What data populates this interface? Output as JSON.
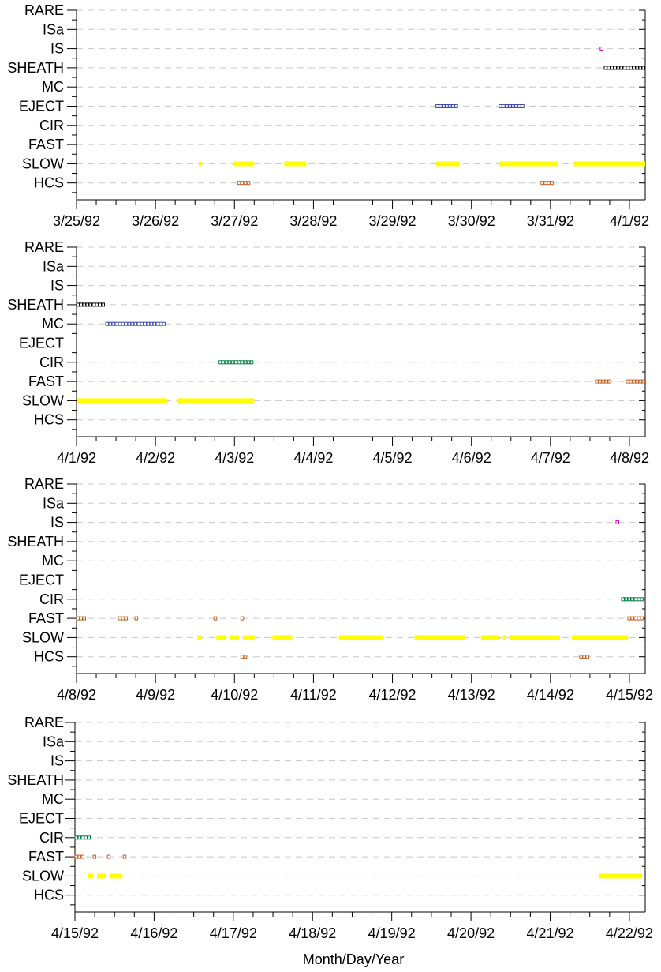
{
  "chart_data": {
    "type": "scatter",
    "categories": [
      "RARE",
      "ISa",
      "IS",
      "SHEATH",
      "MC",
      "EJECT",
      "CIR",
      "FAST",
      "SLOW",
      "HCS"
    ],
    "xlabel": "Month/Day/Year",
    "grid": "horizontal dashed",
    "colors": {
      "SLOW": "#ffff00",
      "HCS": "#c06020",
      "FAST": "#c06020",
      "CIR": "#008040",
      "EJECT": "#4050b0",
      "MC": "#4050b0",
      "SHEATH": "#000000",
      "IS": "#c000c0",
      "ISa": "#c000c0",
      "RARE": "#000000"
    },
    "panels": [
      {
        "xlim": [
          0,
          7.2
        ],
        "tick_labels": [
          "3/25/92",
          "3/26/92",
          "3/27/92",
          "3/28/92",
          "3/29/92",
          "3/30/92",
          "3/31/92",
          "4/1/92"
        ],
        "series": [
          {
            "name": "IS",
            "intervals": [
              [
                6.63,
                6.67
              ]
            ]
          },
          {
            "name": "SHEATH",
            "intervals": [
              [
                6.68,
                7.2
              ]
            ]
          },
          {
            "name": "EJECT",
            "intervals": [
              [
                4.55,
                4.85
              ],
              [
                5.35,
                5.68
              ]
            ]
          },
          {
            "name": "SLOW",
            "intervals": [
              [
                1.55,
                1.58
              ],
              [
                1.99,
                2.25
              ],
              [
                2.63,
                2.91
              ],
              [
                4.55,
                4.85
              ],
              [
                5.35,
                6.1
              ],
              [
                6.3,
                7.2
              ]
            ]
          },
          {
            "name": "HCS",
            "intervals": [
              [
                2.04,
                2.2
              ],
              [
                5.88,
                6.04
              ]
            ]
          }
        ]
      },
      {
        "xlim": [
          0,
          7.2
        ],
        "tick_labels": [
          "4/1/92",
          "4/2/92",
          "4/3/92",
          "4/4/92",
          "4/5/92",
          "4/6/92",
          "4/7/92",
          "4/8/92"
        ],
        "series": [
          {
            "name": "SHEATH",
            "intervals": [
              [
                0.0,
                0.36
              ]
            ]
          },
          {
            "name": "MC",
            "intervals": [
              [
                0.37,
                1.15
              ]
            ]
          },
          {
            "name": "CIR",
            "intervals": [
              [
                1.8,
                2.25
              ]
            ]
          },
          {
            "name": "FAST",
            "intervals": [
              [
                6.57,
                6.78
              ],
              [
                6.96,
                7.2
              ]
            ]
          },
          {
            "name": "SLOW",
            "intervals": [
              [
                0.0,
                1.15
              ],
              [
                1.27,
                2.25
              ]
            ]
          }
        ]
      },
      {
        "xlim": [
          0,
          7.2
        ],
        "tick_labels": [
          "4/8/92",
          "4/9/92",
          "4/10/92",
          "4/11/92",
          "4/12/92",
          "4/13/92",
          "4/14/92",
          "4/15/92"
        ],
        "series": [
          {
            "name": "IS",
            "intervals": [
              [
                6.83,
                6.9
              ]
            ]
          },
          {
            "name": "CIR",
            "intervals": [
              [
                6.9,
                7.2
              ]
            ]
          },
          {
            "name": "FAST",
            "intervals": [
              [
                0.0,
                0.14
              ],
              [
                0.53,
                0.68
              ],
              [
                0.74,
                0.77
              ],
              [
                1.74,
                1.77
              ],
              [
                2.08,
                2.11
              ],
              [
                6.98,
                7.2
              ]
            ]
          },
          {
            "name": "SLOW",
            "intervals": [
              [
                1.53,
                1.58
              ],
              [
                1.77,
                1.9
              ],
              [
                1.94,
                2.06
              ],
              [
                2.11,
                2.26
              ],
              [
                2.48,
                2.73
              ],
              [
                3.32,
                3.88
              ],
              [
                4.28,
                4.92
              ],
              [
                5.12,
                5.35
              ],
              [
                5.4,
                5.44
              ],
              [
                5.48,
                6.12
              ],
              [
                6.27,
                6.98
              ]
            ]
          },
          {
            "name": "HCS",
            "intervals": [
              [
                2.08,
                2.16
              ],
              [
                6.37,
                6.52
              ]
            ]
          }
        ]
      },
      {
        "xlim": [
          0,
          7.2
        ],
        "tick_labels": [
          "4/15/92",
          "4/16/92",
          "4/17/92",
          "4/18/92",
          "4/19/92",
          "4/20/92",
          "4/21/92",
          "4/22/92"
        ],
        "series": [
          {
            "name": "CIR",
            "intervals": [
              [
                0.0,
                0.22
              ]
            ]
          },
          {
            "name": "FAST",
            "intervals": [
              [
                0.0,
                0.14
              ],
              [
                0.23,
                0.26
              ],
              [
                0.41,
                0.44
              ],
              [
                0.61,
                0.64
              ]
            ]
          },
          {
            "name": "SLOW",
            "intervals": [
              [
                0.16,
                0.23
              ],
              [
                0.28,
                0.39
              ],
              [
                0.44,
                0.6
              ],
              [
                6.62,
                7.16
              ]
            ]
          }
        ]
      }
    ]
  }
}
